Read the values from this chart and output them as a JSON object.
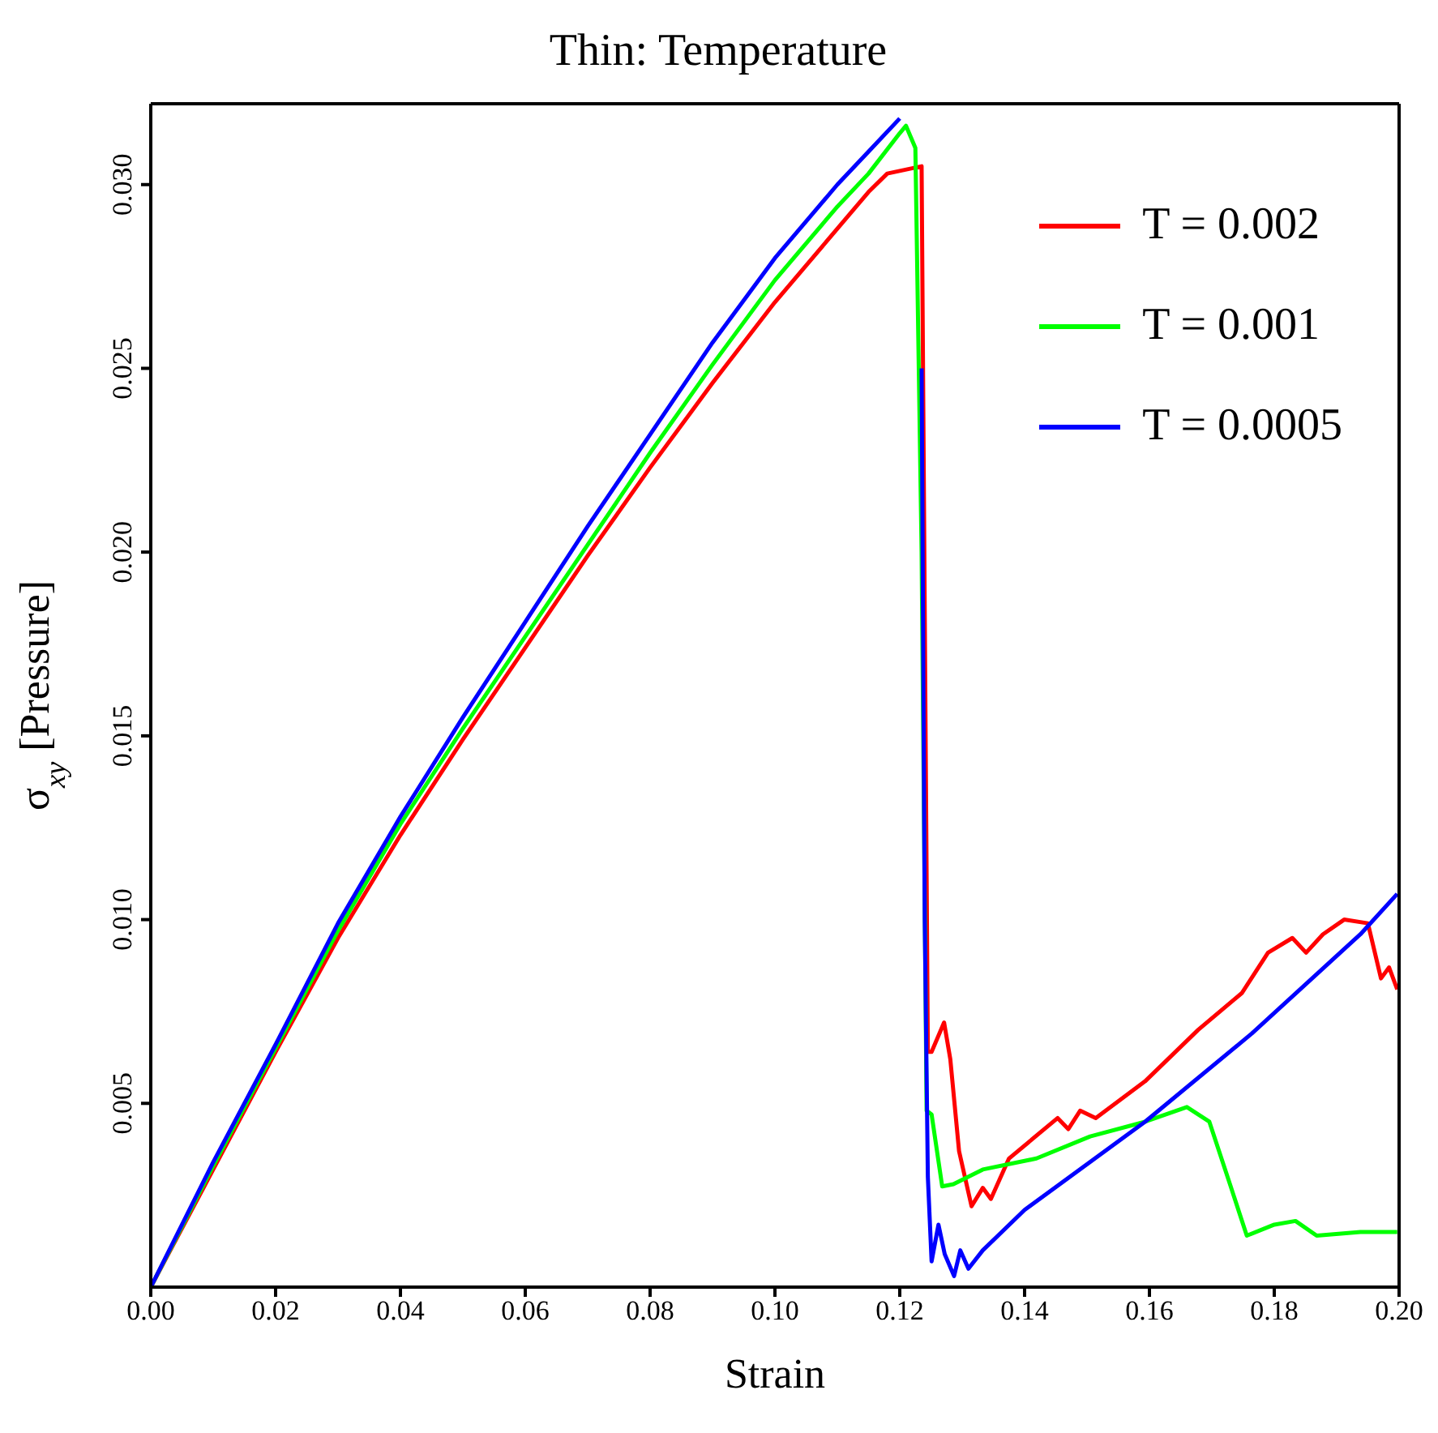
{
  "chart_data": {
    "type": "line",
    "title": "Thin: Temperature",
    "xlabel": "Strain",
    "ylabel": "σ$_{xy}$ [Pressure]",
    "xlim": [
      0,
      0.2
    ],
    "ylim": [
      0,
      0.0322
    ],
    "xticks": [
      {
        "value": 0,
        "label": "0.00"
      },
      {
        "value": 0.02,
        "label": "0.02"
      },
      {
        "value": 0.04,
        "label": "0.04"
      },
      {
        "value": 0.06,
        "label": "0.06"
      },
      {
        "value": 0.08,
        "label": "0.08"
      },
      {
        "value": 0.1,
        "label": "0.10"
      },
      {
        "value": 0.12,
        "label": "0.12"
      },
      {
        "value": 0.14,
        "label": "0.14"
      },
      {
        "value": 0.16,
        "label": "0.16"
      },
      {
        "value": 0.18,
        "label": "0.18"
      },
      {
        "value": 0.2,
        "label": "0.20"
      }
    ],
    "yticks": [
      {
        "value": 0.005,
        "label": "0.005"
      },
      {
        "value": 0.01,
        "label": "0.010"
      },
      {
        "value": 0.015,
        "label": "0.015"
      },
      {
        "value": 0.02,
        "label": "0.020"
      },
      {
        "value": 0.025,
        "label": "0.025"
      },
      {
        "value": 0.03,
        "label": "0.030"
      }
    ],
    "grid": false,
    "legend": "top right",
    "marker": "none",
    "line_style": "solid",
    "series": [
      {
        "name": "T = 0.002",
        "color": "#ff0000",
        "x": [
          0,
          0.01,
          0.02,
          0.03,
          0.04,
          0.05,
          0.06,
          0.07,
          0.08,
          0.09,
          0.1,
          0.11,
          0.115,
          0.118,
          0.1235,
          0.1245,
          0.1251,
          0.1271,
          0.1281,
          0.1295,
          0.1315,
          0.1333,
          0.1346,
          0.1375,
          0.1453,
          0.147,
          0.1489,
          0.1514,
          0.1593,
          0.1678,
          0.1748,
          0.179,
          0.1829,
          0.1851,
          0.1878,
          0.1912,
          0.195,
          0.1971,
          0.1984,
          0.1997
        ],
        "values": [
          0,
          0.0032,
          0.0064,
          0.0095,
          0.0123,
          0.0149,
          0.0174,
          0.0199,
          0.0223,
          0.0246,
          0.0268,
          0.0288,
          0.0298,
          0.0303,
          0.0305,
          0.0064,
          0.0064,
          0.0072,
          0.0062,
          0.0037,
          0.0022,
          0.0027,
          0.0024,
          0.0035,
          0.0046,
          0.0043,
          0.0048,
          0.0046,
          0.0056,
          0.007,
          0.008,
          0.0091,
          0.0095,
          0.0091,
          0.0096,
          0.01,
          0.0099,
          0.0084,
          0.0087,
          0.0081
        ]
      },
      {
        "name": "T = 0.001",
        "color": "#00ff00",
        "x": [
          0,
          0.01,
          0.02,
          0.03,
          0.04,
          0.05,
          0.06,
          0.07,
          0.08,
          0.09,
          0.1,
          0.11,
          0.115,
          0.12,
          0.121,
          0.1225,
          0.1235,
          0.1243,
          0.1251,
          0.1268,
          0.1286,
          0.1333,
          0.1419,
          0.1505,
          0.1593,
          0.166,
          0.1696,
          0.173,
          0.1756,
          0.18,
          0.1834,
          0.1868,
          0.1938,
          0.1997
        ],
        "values": [
          0,
          0.0033,
          0.0065,
          0.0097,
          0.0126,
          0.0152,
          0.0177,
          0.0202,
          0.0227,
          0.0251,
          0.0274,
          0.0294,
          0.0303,
          0.0314,
          0.0316,
          0.031,
          0.02,
          0.0048,
          0.0047,
          0.00274,
          0.0028,
          0.0032,
          0.0035,
          0.0041,
          0.0045,
          0.0049,
          0.0045,
          0.00275,
          0.0014,
          0.0017,
          0.0018,
          0.0014,
          0.0015,
          0.0015
        ]
      },
      {
        "name": "T = 0.0005",
        "color": "#0000ff",
        "x": [
          0,
          0.01,
          0.02,
          0.03,
          0.04,
          0.05,
          0.06,
          0.07,
          0.08,
          0.09,
          0.1,
          0.11,
          0.115,
          0.12,
          0.121,
          0.123,
          0.1235,
          0.124,
          0.1245,
          0.1251,
          0.1262,
          0.1272,
          0.1287,
          0.1297,
          0.131,
          0.1333,
          0.14,
          0.1593,
          0.1764,
          0.1938,
          0.1997
        ],
        "values": [
          0,
          0.0034,
          0.0066,
          0.0099,
          0.0128,
          0.0155,
          0.0181,
          0.0207,
          0.0232,
          0.0257,
          0.028,
          0.03,
          0.0309,
          0.0318,
          null,
          null,
          0.025,
          0.01,
          0.003,
          0.0007,
          0.0017,
          0.0009,
          0.0003,
          0.001,
          0.0005,
          0.001,
          0.0021,
          0.0045,
          0.0069,
          0.0096,
          0.0107
        ]
      }
    ]
  }
}
